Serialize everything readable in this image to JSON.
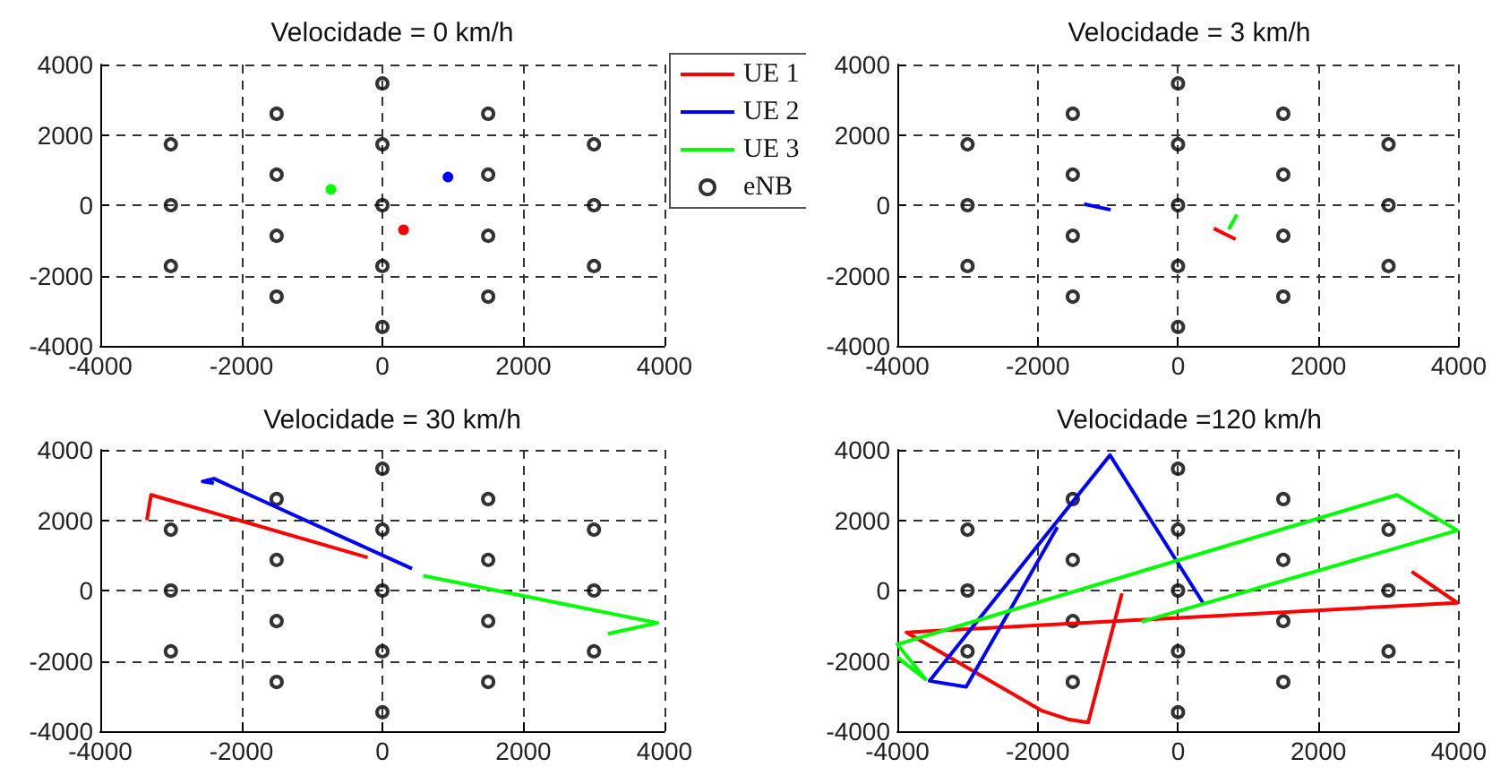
{
  "chart_data": [
    {
      "type": "line",
      "title": "Velocidade = 0 km/h",
      "xlim": [
        -4000,
        4000
      ],
      "ylim": [
        -4000,
        4000
      ],
      "xticks": [
        -4000,
        -2000,
        0,
        2000,
        4000
      ],
      "yticks": [
        -4000,
        -2000,
        0,
        2000,
        4000
      ],
      "grid": true,
      "legend": "top right",
      "series": [
        {
          "name": "UE 1",
          "color": "#ff0000",
          "marker": "circle",
          "x": [
            300
          ],
          "values": [
            -700
          ]
        },
        {
          "name": "UE 2",
          "color": "#0000ff",
          "marker": "circle",
          "x": [
            930
          ],
          "values": [
            800
          ]
        },
        {
          "name": "UE 3",
          "color": "#00ff00",
          "marker": "circle",
          "x": [
            -730
          ],
          "values": [
            450
          ]
        },
        {
          "name": "eNB",
          "type": "scatter",
          "color": "#000000",
          "marker": "circle",
          "x": [
            0,
            0,
            0,
            0,
            0,
            1500,
            1500,
            1500,
            1500,
            -1500,
            -1500,
            -1500,
            -1500,
            3000,
            3000,
            3000,
            -3000,
            -3000,
            -3000
          ],
          "values": [
            0,
            1730,
            -1730,
            3460,
            -3460,
            870,
            -870,
            2600,
            -2600,
            870,
            -870,
            2600,
            -2600,
            0,
            1730,
            -1730,
            0,
            1730,
            -1730
          ]
        }
      ]
    },
    {
      "type": "line",
      "title": "Velocidade = 3 km/h",
      "xlim": [
        -4000,
        4000
      ],
      "ylim": [
        -4000,
        4000
      ],
      "xticks": [
        -4000,
        -2000,
        0,
        2000,
        4000
      ],
      "yticks": [
        -4000,
        -2000,
        0,
        2000,
        4000
      ],
      "grid": true,
      "series": [
        {
          "color": "#ff0000",
          "marker": "none",
          "x": [
            510,
            820
          ],
          "values": [
            -660,
            -970
          ]
        },
        {
          "color": "#0000ff",
          "marker": "none",
          "x": [
            -1340,
            -960
          ],
          "values": [
            30,
            -130
          ]
        },
        {
          "color": "#00ff00",
          "marker": "none",
          "x": [
            720,
            840
          ],
          "values": [
            -690,
            -270
          ]
        },
        {
          "type": "scatter",
          "color": "#000000",
          "marker": "circle",
          "x": [
            0,
            0,
            0,
            0,
            0,
            1500,
            1500,
            1500,
            1500,
            -1500,
            -1500,
            -1500,
            -1500,
            3000,
            3000,
            3000,
            -3000,
            -3000,
            -3000
          ],
          "values": [
            0,
            1730,
            -1730,
            3460,
            -3460,
            870,
            -870,
            2600,
            -2600,
            870,
            -870,
            2600,
            -2600,
            0,
            1730,
            -1730,
            0,
            1730,
            -1730
          ]
        }
      ]
    },
    {
      "type": "line",
      "title": "Velocidade = 30 km/h",
      "xlim": [
        -4000,
        4000
      ],
      "ylim": [
        -4000,
        4000
      ],
      "xticks": [
        -4000,
        -2000,
        0,
        2000,
        4000
      ],
      "yticks": [
        -4000,
        -2000,
        0,
        2000,
        4000
      ],
      "grid": true,
      "series": [
        {
          "color": "#ff0000",
          "marker": "none",
          "x": [
            -3340,
            -3280,
            -210
          ],
          "values": [
            2000,
            2720,
            940
          ]
        },
        {
          "color": "#0000ff",
          "marker": "none",
          "x": [
            420,
            -2390,
            -2550,
            -2390
          ],
          "values": [
            620,
            3180,
            3100,
            3050
          ]
        },
        {
          "color": "#00ff00",
          "marker": "none",
          "x": [
            580,
            3900,
            3200
          ],
          "values": [
            420,
            -920,
            -1230
          ]
        },
        {
          "type": "scatter",
          "color": "#000000",
          "marker": "circle",
          "x": [
            0,
            0,
            0,
            0,
            0,
            1500,
            1500,
            1500,
            1500,
            -1500,
            -1500,
            -1500,
            -1500,
            3000,
            3000,
            3000,
            -3000,
            -3000,
            -3000
          ],
          "values": [
            0,
            1730,
            -1730,
            3460,
            -3460,
            870,
            -870,
            2600,
            -2600,
            870,
            -870,
            2600,
            -2600,
            0,
            1730,
            -1730,
            0,
            1730,
            -1730
          ]
        }
      ]
    },
    {
      "type": "line",
      "title": "Velocidade =120 km/h",
      "xlim": [
        -4000,
        4000
      ],
      "ylim": [
        -4000,
        4000
      ],
      "xticks": [
        -4000,
        -2000,
        0,
        2000,
        4000
      ],
      "yticks": [
        -4000,
        -2000,
        0,
        2000,
        4000
      ],
      "grid": true,
      "series": [
        {
          "color": "#ff0000",
          "marker": "none",
          "x": [
            3330,
            3980,
            -3870,
            -1950,
            -1570,
            -1280,
            -800
          ],
          "values": [
            540,
            -350,
            -1190,
            -3410,
            -3660,
            -3750,
            -80
          ]
        },
        {
          "color": "#0000ff",
          "marker": "none",
          "x": [
            355,
            -970,
            -3540,
            -3020,
            -1720
          ],
          "values": [
            -350,
            3850,
            -2570,
            -2740,
            1800
          ]
        },
        {
          "color": "#00ff00",
          "marker": "none",
          "x": [
            -520,
            3980,
            3120,
            -4000,
            -3600,
            -4000
          ],
          "values": [
            -890,
            1710,
            2720,
            -1530,
            -2520,
            -1900
          ]
        },
        {
          "type": "scatter",
          "color": "#000000",
          "marker": "circle",
          "x": [
            0,
            0,
            0,
            0,
            0,
            1500,
            1500,
            1500,
            1500,
            -1500,
            -1500,
            -1500,
            -1500,
            3000,
            3000,
            3000,
            -3000,
            -3000,
            -3000
          ],
          "values": [
            0,
            1730,
            -1730,
            3460,
            -3460,
            870,
            -870,
            2600,
            -2600,
            870,
            -870,
            2600,
            -2600,
            0,
            1730,
            -1730,
            0,
            1730,
            -1730
          ]
        }
      ]
    }
  ]
}
